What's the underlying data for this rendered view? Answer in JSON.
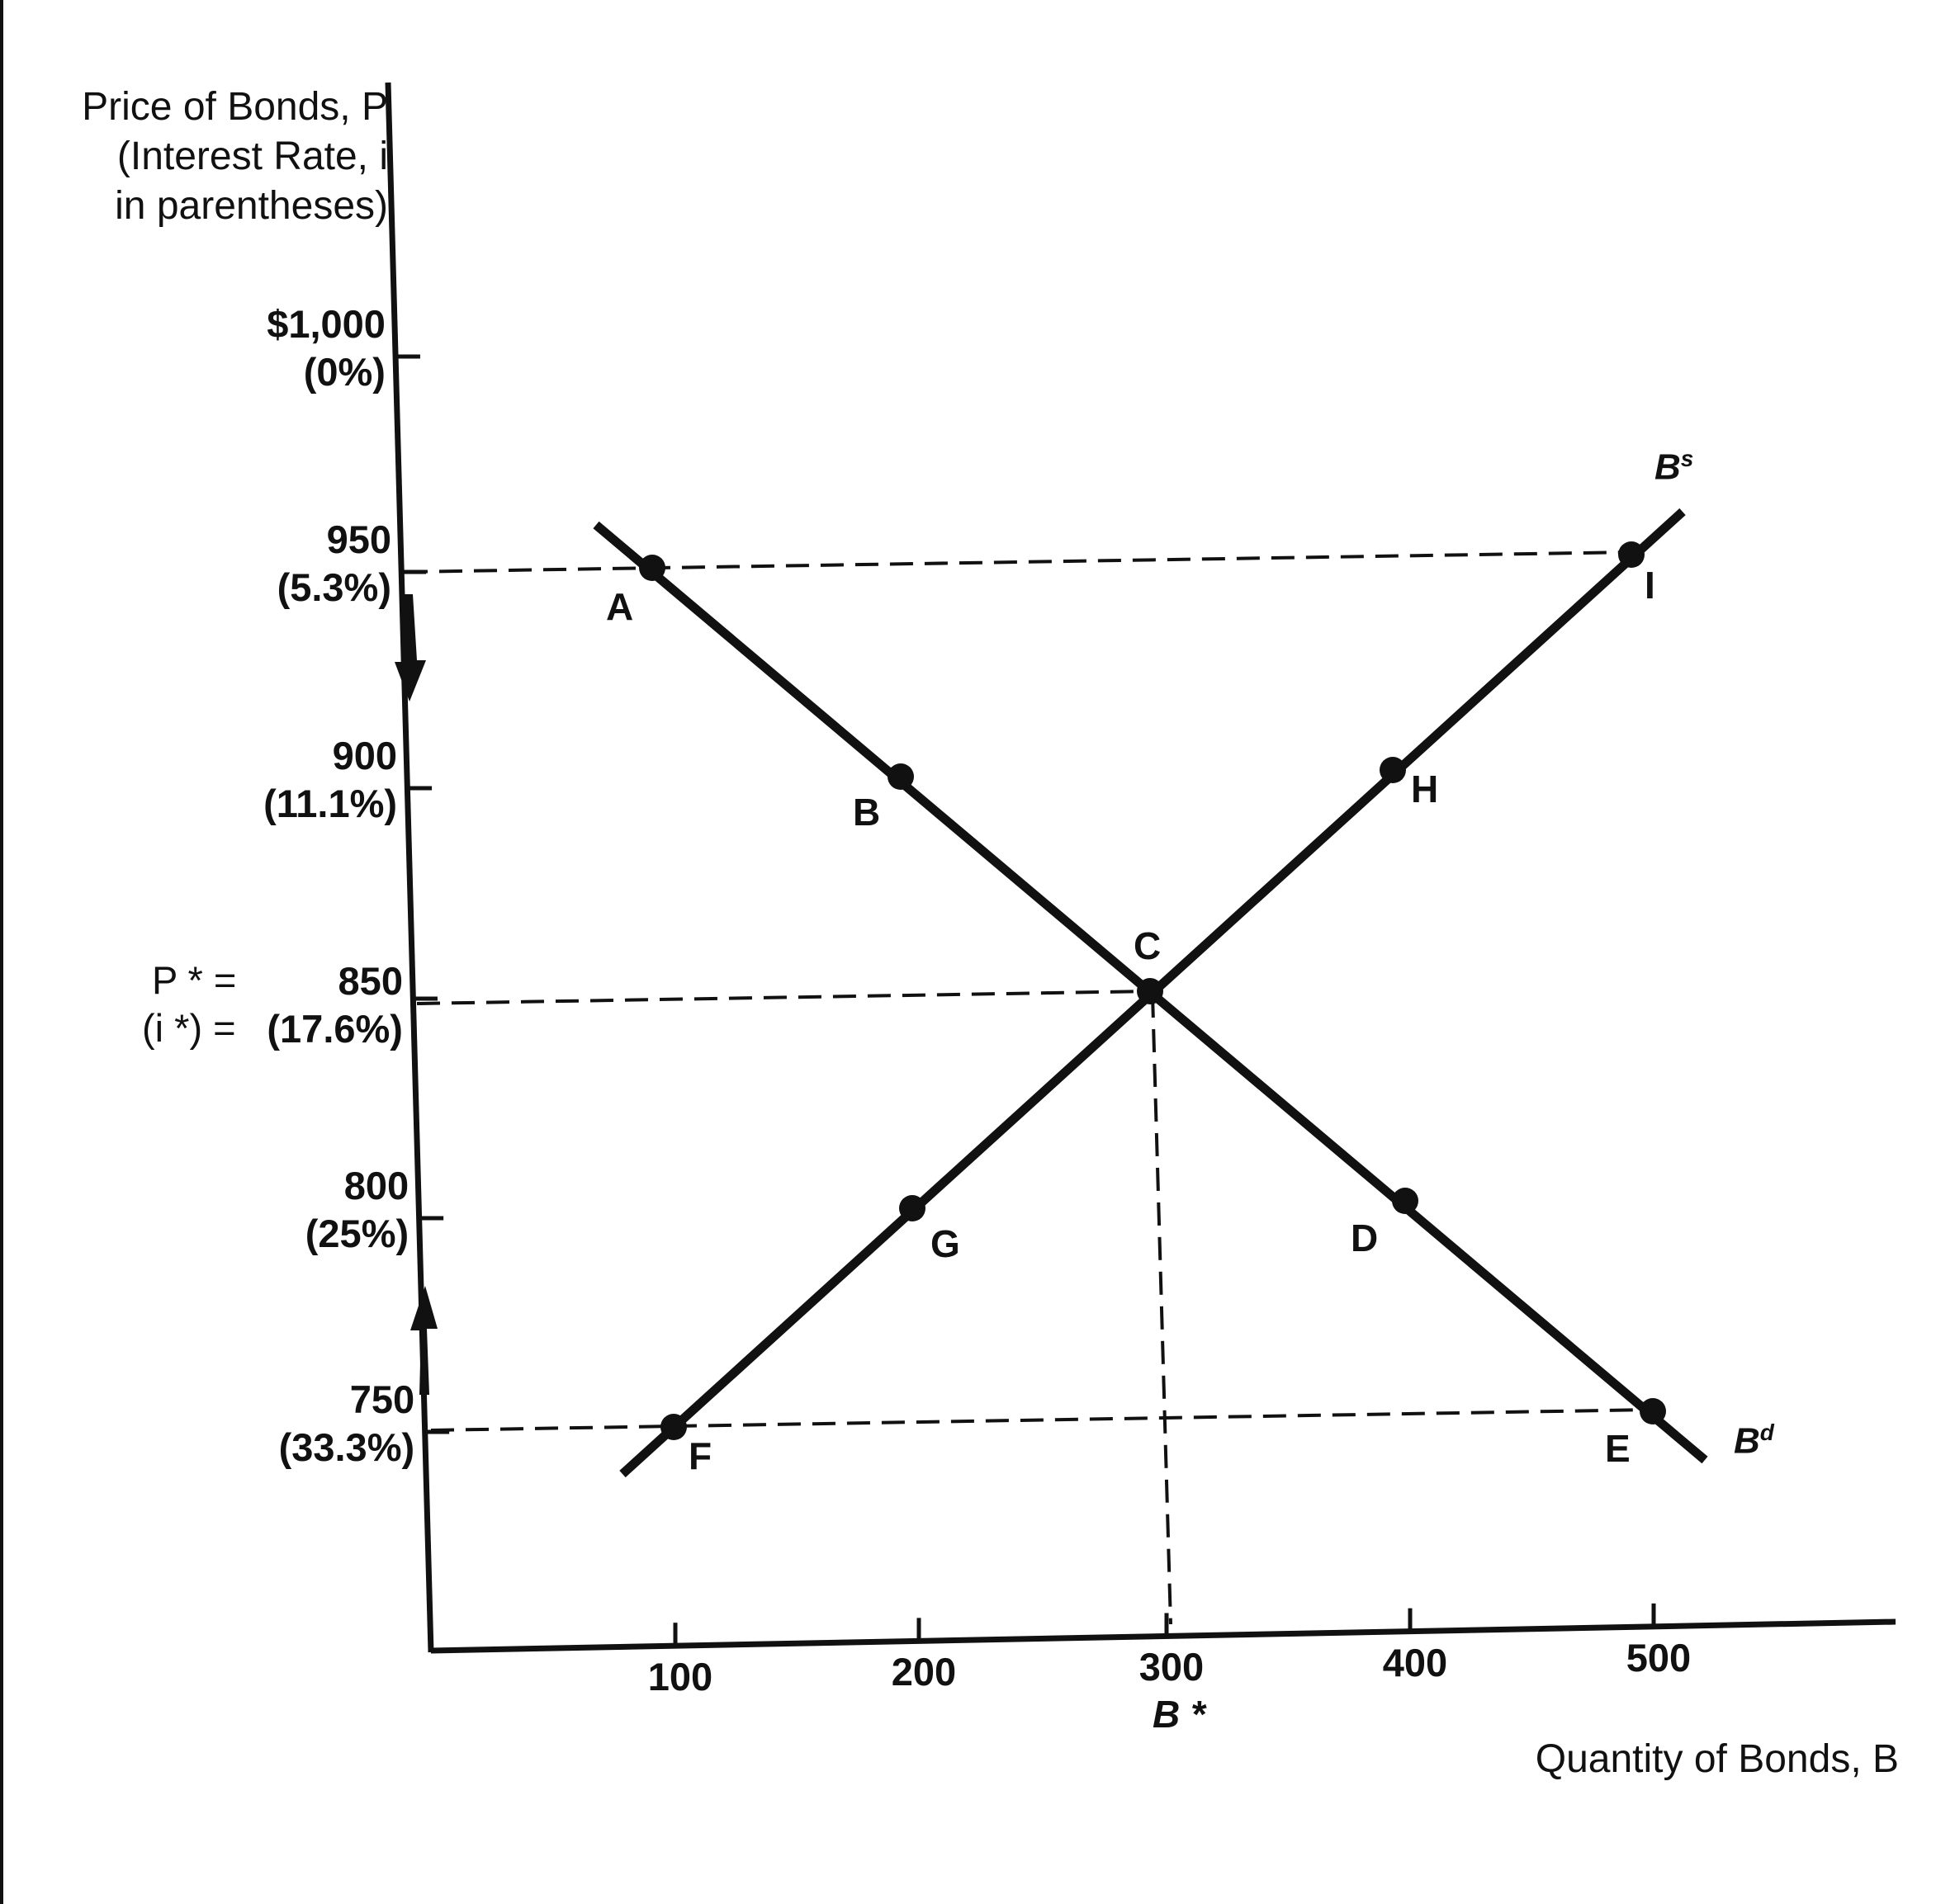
{
  "chart_data": {
    "type": "line",
    "y_axis_title": [
      "Price of Bonds, P",
      "(Interest Rate, i",
      "in parentheses)"
    ],
    "x_axis_title": "Quantity of Bonds, B",
    "y_ticks": [
      {
        "value": 1000,
        "price_label": "$1,000",
        "rate_label": "(0%)"
      },
      {
        "value": 950,
        "price_label": "950",
        "rate_label": "(5.3%)"
      },
      {
        "value": 900,
        "price_label": "900",
        "rate_label": "(11.1%)"
      },
      {
        "value": 850,
        "price_label": "850",
        "rate_label": "(17.6%)"
      },
      {
        "value": 800,
        "price_label": "800",
        "rate_label": "(25%)"
      },
      {
        "value": 750,
        "price_label": "750",
        "rate_label": "(33.3%)"
      }
    ],
    "x_ticks": [
      {
        "value": 100,
        "label": "100"
      },
      {
        "value": 200,
        "label": "200"
      },
      {
        "value": 300,
        "label": "300"
      },
      {
        "value": 400,
        "label": "400"
      },
      {
        "value": 500,
        "label": "500"
      }
    ],
    "equilibrium": {
      "price_prefix": "P * =",
      "rate_prefix": "(i *) = ",
      "quantity_label": "B *",
      "x": 300,
      "y": 850
    },
    "series": [
      {
        "name": "Bd",
        "label_main": "B",
        "label_sup": "d",
        "points": [
          {
            "label": "A",
            "x": 100,
            "y": 950
          },
          {
            "label": "B",
            "x": 200,
            "y": 900
          },
          {
            "label": "C",
            "x": 300,
            "y": 850
          },
          {
            "label": "D",
            "x": 400,
            "y": 800
          },
          {
            "label": "E",
            "x": 500,
            "y": 750
          }
        ]
      },
      {
        "name": "Bs",
        "label_main": "B",
        "label_sup": "s",
        "points": [
          {
            "label": "F",
            "x": 100,
            "y": 750
          },
          {
            "label": "G",
            "x": 200,
            "y": 800
          },
          {
            "label": "C",
            "x": 300,
            "y": 850
          },
          {
            "label": "H",
            "x": 400,
            "y": 900
          },
          {
            "label": "I",
            "x": 500,
            "y": 950
          }
        ]
      }
    ],
    "excess_supply_at_price": 950,
    "excess_demand_at_price": 750,
    "xlim": [
      0,
      600
    ],
    "ylim": [
      700,
      1050
    ],
    "grid": false
  }
}
